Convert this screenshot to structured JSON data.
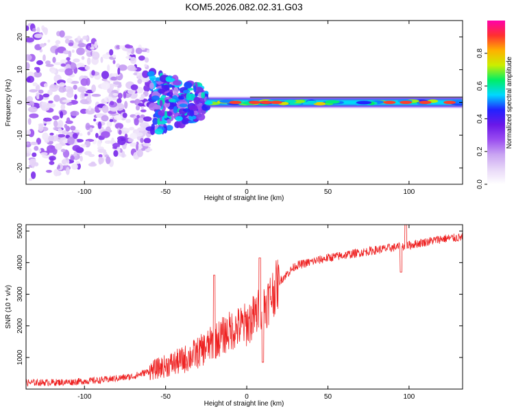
{
  "title": "KOM5.2026.082.02.31.G03",
  "colors": {
    "snr_line": "#ee2222",
    "frame": "#000000",
    "colormap": [
      "#ffffff",
      "#e8d8f8",
      "#c9a4f2",
      "#9a4df0",
      "#6a18e8",
      "#2222ff",
      "#00d8ff",
      "#00ee66",
      "#ccee00",
      "#ffb000",
      "#ff3030",
      "#ff00aa"
    ]
  },
  "chart_data": [
    {
      "type": "heatmap",
      "name": "spectrogram",
      "xlabel": "Height of straight line (km)",
      "ylabel": "Frequency (Hz)",
      "xlim": [
        -136,
        133
      ],
      "ylim": [
        -25,
        25
      ],
      "xticks": [
        -100,
        -50,
        0,
        50,
        100
      ],
      "yticks": [
        -20,
        -10,
        0,
        10,
        20
      ],
      "colorbar": {
        "label": "Normalized spectral amplitude",
        "range": [
          0.0,
          1.0
        ],
        "ticks": [
          0.0,
          0.2,
          0.4,
          0.6,
          0.8
        ]
      },
      "description_bands": [
        {
          "x_range": [
            -136,
            -60
          ],
          "freq_spread_hz": 24,
          "amplitude": [
            0.05,
            0.35
          ]
        },
        {
          "x_range": [
            -60,
            -25
          ],
          "freq_spread_hz": 10,
          "amplitude": [
            0.2,
            0.6
          ]
        },
        {
          "x_range": [
            -25,
            133
          ],
          "freq_spread_hz": 2,
          "amplitude": [
            0.4,
            1.0
          ]
        }
      ],
      "ridge_peaks_km": [
        -7,
        5,
        12,
        18,
        88,
        98,
        110,
        125
      ]
    },
    {
      "type": "line",
      "name": "snr",
      "xlabel": "Height of straight line (km)",
      "ylabel": "SNR (10 * v/v)",
      "xlim": [
        -136,
        133
      ],
      "ylim": [
        0,
        5200
      ],
      "xticks": [
        -100,
        -50,
        0,
        50,
        100
      ],
      "yticks": [
        1000,
        2000,
        3000,
        4000,
        5000
      ],
      "trend_points": [
        {
          "x": -136,
          "y": 200
        },
        {
          "x": -110,
          "y": 220
        },
        {
          "x": -90,
          "y": 280
        },
        {
          "x": -70,
          "y": 400
        },
        {
          "x": -55,
          "y": 650
        },
        {
          "x": -40,
          "y": 900
        },
        {
          "x": -30,
          "y": 1150
        },
        {
          "x": -20,
          "y": 1500
        },
        {
          "x": -10,
          "y": 1850
        },
        {
          "x": 0,
          "y": 2050
        },
        {
          "x": 5,
          "y": 2300
        },
        {
          "x": 12,
          "y": 2700
        },
        {
          "x": 20,
          "y": 3400
        },
        {
          "x": 30,
          "y": 3900
        },
        {
          "x": 50,
          "y": 4150
        },
        {
          "x": 80,
          "y": 4400
        },
        {
          "x": 100,
          "y": 4550
        },
        {
          "x": 120,
          "y": 4750
        },
        {
          "x": 133,
          "y": 4800
        }
      ],
      "spikes": [
        {
          "x": -20,
          "y": 3600
        },
        {
          "x": 8,
          "y": 4150
        },
        {
          "x": 10,
          "y": 850
        },
        {
          "x": 98,
          "y": 5200
        },
        {
          "x": 95,
          "y": 3700
        }
      ]
    }
  ]
}
